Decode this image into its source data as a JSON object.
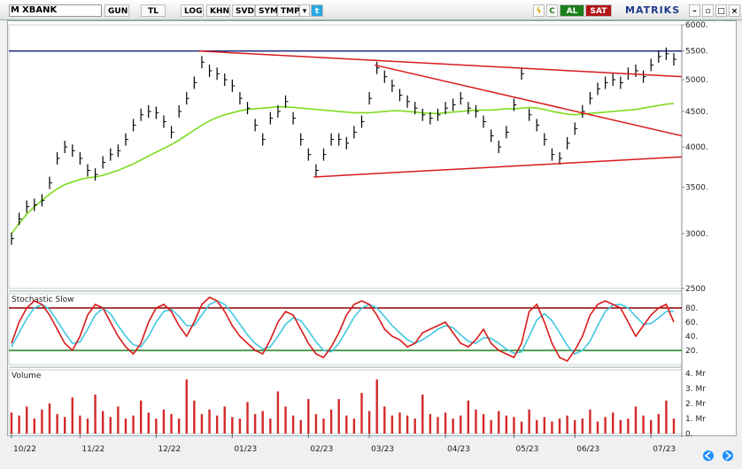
{
  "toolbar": {
    "symbol": "XBANK",
    "symbol_prefix": "M",
    "period": "GUN",
    "currency": "TL",
    "buttons": [
      "LOG",
      "KHN",
      "SVD",
      "SYM",
      "TMP"
    ],
    "buy": "AL",
    "sell": "SAT",
    "brand": "MATRIKS",
    "colors": {
      "buy": "#1a7f1a",
      "sell": "#b01515",
      "brand": "#1e3a8a"
    }
  },
  "chart_data": [
    {
      "type": "line",
      "panel": "price",
      "price_range": [
        2500,
        6000
      ],
      "yaxis_ticks": [
        "6000.",
        "5500.",
        "5000.",
        "4500.",
        "4000.",
        "3500.",
        "3000.",
        "2500"
      ],
      "x_labels": [
        "10/22",
        "11/22",
        "12/22",
        "01/23",
        "02/23",
        "03/23",
        "04/23",
        "05/23",
        "06/23",
        "07/23"
      ],
      "series": [
        {
          "values": [
            2950,
            3150,
            3280,
            3300,
            3350,
            3550,
            3850,
            4000,
            3950,
            3850,
            3700,
            3650,
            3800,
            3900,
            3950,
            4100,
            4300,
            4450,
            4500,
            4480,
            4350,
            4200,
            4500,
            4700,
            4950,
            5300,
            5150,
            5100,
            5000,
            4900,
            4700,
            4550,
            4300,
            4100,
            4400,
            4500,
            4650,
            4400,
            4100,
            3900,
            3700,
            3900,
            4100,
            4100,
            4050,
            4200,
            4350,
            4700,
            5200,
            5050,
            4900,
            4750,
            4650,
            4550,
            4450,
            4400,
            4450,
            4550,
            4600,
            4700,
            4550,
            4500,
            4350,
            4150,
            4000,
            4200,
            4600,
            5100,
            4450,
            4300,
            4100,
            3900,
            3850,
            4050,
            4250,
            4500,
            4700,
            4850,
            4950,
            5000,
            4950,
            5100,
            5150,
            5050,
            5250,
            5400,
            5450,
            5350
          ]
        },
        {
          "name": "MA",
          "values": [
            3000,
            3100,
            3200,
            3280,
            3350,
            3420,
            3480,
            3530,
            3560,
            3590,
            3610,
            3620,
            3640,
            3670,
            3700,
            3740,
            3780,
            3830,
            3880,
            3930,
            3980,
            4030,
            4090,
            4160,
            4230,
            4300,
            4360,
            4410,
            4450,
            4480,
            4510,
            4530,
            4540,
            4550,
            4560,
            4570,
            4570,
            4560,
            4550,
            4540,
            4530,
            4520,
            4510,
            4500,
            4490,
            4480,
            4480,
            4480,
            4490,
            4500,
            4510,
            4510,
            4500,
            4490,
            4480,
            4470,
            4470,
            4480,
            4490,
            4500,
            4510,
            4520,
            4520,
            4520,
            4530,
            4540,
            4540,
            4550,
            4560,
            4550,
            4530,
            4500,
            4480,
            4460,
            4450,
            4460,
            4470,
            4480,
            4490,
            4500,
            4510,
            4520,
            4530,
            4550,
            4570,
            4590,
            4610,
            4620
          ]
        }
      ],
      "levels": [
        5500
      ],
      "trendlines": [
        {
          "from": [
            "12/22",
            5500
          ],
          "to": [
            "07/23",
            5050
          ]
        },
        {
          "from": [
            "03/23",
            5250
          ],
          "to": [
            "07/23",
            4150
          ]
        },
        {
          "from": [
            "02/23",
            3620
          ],
          "to": [
            "07/23",
            3870
          ]
        }
      ],
      "colors": {
        "price": "#000000",
        "ma": "#7ddc1f",
        "trend": "#d81b1b",
        "level": "#1a237e"
      }
    },
    {
      "type": "line",
      "panel": "oscillator",
      "title": "Stochastic Slow",
      "yaxis_ticks": [
        "80.",
        "60.",
        "40.",
        "20."
      ],
      "ylim": [
        0,
        100
      ],
      "levels": [
        80,
        20
      ],
      "series": [
        {
          "values": [
            30,
            60,
            80,
            90,
            85,
            70,
            50,
            30,
            20,
            40,
            70,
            85,
            80,
            60,
            40,
            25,
            15,
            30,
            60,
            80,
            85,
            75,
            55,
            40,
            60,
            85,
            95,
            90,
            75,
            55,
            40,
            30,
            20,
            15,
            35,
            60,
            75,
            70,
            50,
            30,
            15,
            10,
            25,
            45,
            70,
            85,
            90,
            85,
            70,
            50,
            40,
            35,
            25,
            30,
            45,
            50,
            55,
            60,
            45,
            30,
            25,
            35,
            50,
            30,
            20,
            15,
            10,
            30,
            75,
            85,
            60,
            30,
            10,
            5,
            20,
            40,
            70,
            85,
            90,
            85,
            80,
            60,
            40,
            55,
            70,
            80,
            85,
            60
          ]
        },
        {
          "values": [
            25,
            45,
            65,
            80,
            85,
            78,
            62,
            45,
            30,
            32,
            50,
            70,
            80,
            72,
            55,
            40,
            28,
            25,
            40,
            60,
            75,
            78,
            68,
            55,
            55,
            70,
            85,
            90,
            85,
            72,
            57,
            42,
            30,
            22,
            25,
            40,
            57,
            66,
            62,
            48,
            32,
            20,
            18,
            30,
            48,
            67,
            80,
            85,
            80,
            68,
            55,
            45,
            35,
            30,
            35,
            42,
            50,
            55,
            52,
            42,
            33,
            30,
            38,
            37,
            30,
            22,
            16,
            18,
            40,
            63,
            72,
            62,
            45,
            27,
            15,
            20,
            33,
            55,
            75,
            84,
            85,
            80,
            68,
            57,
            58,
            66,
            75,
            75
          ]
        }
      ],
      "colors": {
        "k": "#d81b1b",
        "d": "#41c8e0",
        "upper": "#8b0000",
        "lower": "#1a7f1a"
      }
    },
    {
      "type": "bar",
      "panel": "volume",
      "title": "Volume",
      "yaxis_ticks": [
        "4. Mr",
        "3. Mr",
        "2. Mr",
        "1. Mr",
        "0."
      ],
      "ylim": [
        0,
        4
      ],
      "values": [
        1.4,
        1.2,
        1.8,
        1.0,
        1.6,
        2.0,
        1.3,
        1.1,
        2.4,
        1.2,
        1.0,
        2.6,
        1.5,
        1.1,
        1.8,
        1.0,
        1.2,
        2.2,
        1.4,
        1.0,
        1.6,
        1.3,
        1.0,
        3.6,
        2.2,
        1.3,
        1.6,
        1.2,
        1.8,
        1.1,
        1.0,
        2.1,
        1.3,
        1.5,
        1.0,
        2.8,
        1.8,
        1.2,
        0.9,
        2.3,
        1.3,
        1.0,
        1.6,
        2.3,
        1.2,
        1.0,
        2.7,
        1.5,
        3.6,
        1.8,
        1.2,
        1.4,
        1.2,
        1.0,
        2.6,
        1.3,
        1.1,
        1.4,
        1.0,
        1.2,
        2.2,
        1.6,
        1.3,
        0.9,
        1.5,
        1.2,
        1.1,
        0.8,
        1.6,
        0.9,
        1.1,
        0.8,
        1.0,
        1.2,
        0.9,
        1.0,
        1.6,
        0.8,
        1.1,
        1.4,
        0.9,
        1.0,
        1.8,
        1.2,
        0.9,
        1.3,
        2.2,
        1.0
      ],
      "colors": {
        "bar": "#d42a2a"
      }
    }
  ]
}
